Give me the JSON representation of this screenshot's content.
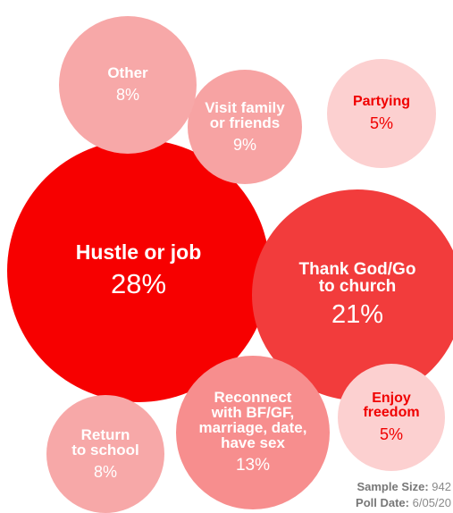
{
  "chart_data": {
    "type": "packed-bubble",
    "categories": [
      "Hustle or job",
      "Thank God/Go\nto church",
      "Reconnect\nwith BF/GF,\nmarriage, date,\nhave sex",
      "Visit family\nor friends",
      "Other",
      "Return\nto school",
      "Partying",
      "Enjoy\nfreedom"
    ],
    "values": [
      28,
      21,
      13,
      9,
      8,
      8,
      5,
      5
    ],
    "value_labels": [
      "28%",
      "21%",
      "13%",
      "9%",
      "8%",
      "8%",
      "5%",
      "5%"
    ],
    "colors": [
      "#f70000",
      "#f23c3c",
      "#f78e8e",
      "#f7a3a3",
      "#f7a8a8",
      "#f7a8a8",
      "#fcd0d0",
      "#fcd0d0"
    ],
    "label_colors": [
      "#ffffff",
      "#ffffff",
      "#ffffff",
      "#ffffff",
      "#ffffff",
      "#ffffff",
      "#f00000",
      "#f00000"
    ],
    "notes": [
      {
        "label": "Sample Size:",
        "value": 942
      },
      {
        "label": "Poll Date:",
        "value": "6/05/20"
      }
    ]
  }
}
